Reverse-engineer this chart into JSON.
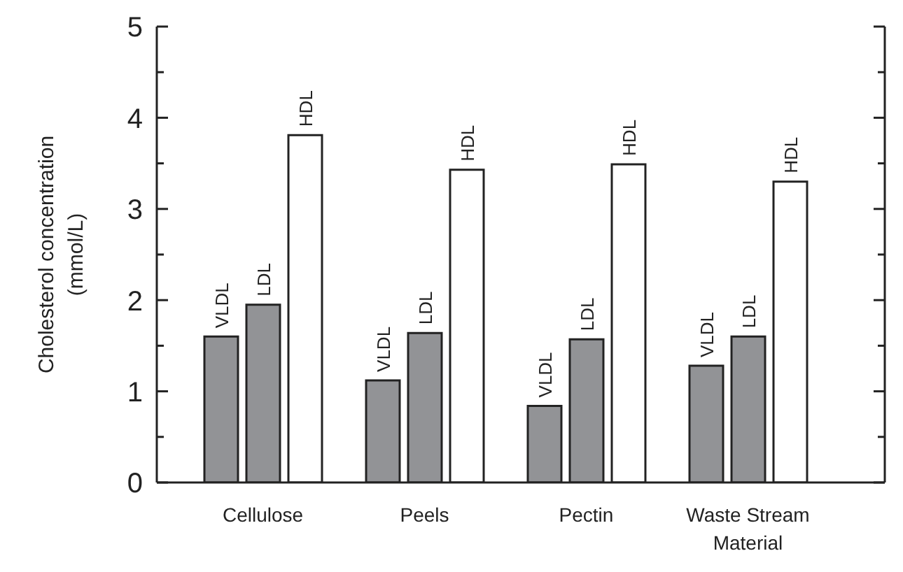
{
  "chart_data": {
    "type": "bar",
    "ylabel": "Cholesterol concentration (mmol/L)",
    "categories": [
      "Cellulose",
      "Peels",
      "Pectin",
      "Waste Stream Material"
    ],
    "series": [
      {
        "name": "VLDL",
        "color": "#929396",
        "values": [
          1.6,
          1.12,
          0.84,
          1.28
        ]
      },
      {
        "name": "LDL",
        "color": "#929396",
        "values": [
          1.95,
          1.64,
          1.57,
          1.6
        ]
      },
      {
        "name": "HDL",
        "color": "#ffffff",
        "values": [
          3.81,
          3.43,
          3.49,
          3.3
        ]
      }
    ],
    "ylim": [
      0,
      5
    ],
    "yticks": [
      0,
      {
        "value": 0.5,
        "label": null
      },
      1,
      {
        "value": 1.5,
        "label": null
      },
      2,
      {
        "value": 2.5,
        "label": null
      },
      3,
      {
        "value": 3.5,
        "label": null
      },
      4,
      {
        "value": 4.5,
        "label": null
      },
      5
    ],
    "grid": false,
    "legend": false
  }
}
